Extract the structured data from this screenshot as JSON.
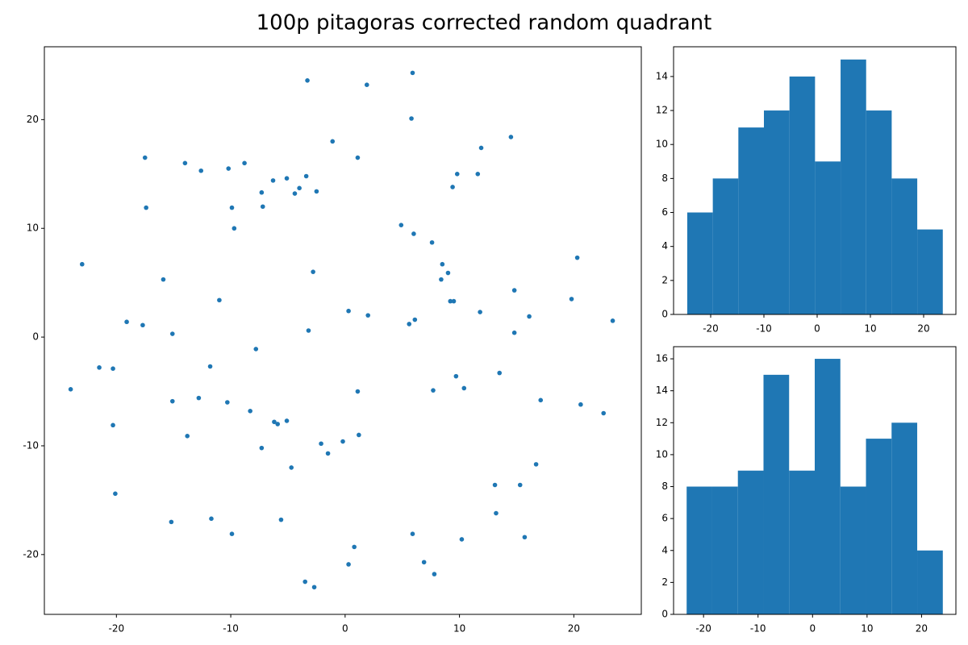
{
  "title": "100p pitagoras corrected random quadrant",
  "chart_data": [
    {
      "type": "scatter",
      "color": "#1f77b4",
      "xlim": [
        -26.3,
        25.9
      ],
      "ylim": [
        -25.5,
        26.7
      ],
      "xticks": [
        -20,
        -10,
        0,
        10,
        20
      ],
      "yticks": [
        -20,
        -10,
        0,
        10,
        20
      ],
      "x": [
        5.9,
        -3.3,
        1.9,
        5.8,
        -1.1,
        -17.5,
        1.1,
        14.5,
        11.9,
        -14.0,
        -12.6,
        -8.8,
        -10.2,
        -5.1,
        -3.4,
        -6.3,
        9.8,
        11.6,
        9.4,
        -7.3,
        -4.0,
        -4.4,
        -2.5,
        -17.4,
        -9.9,
        -7.2,
        -9.7,
        4.9,
        6.0,
        7.6,
        -23.0,
        20.3,
        8.5,
        9.0,
        -2.8,
        8.4,
        -15.9,
        14.8,
        -11.0,
        9.2,
        9.5,
        19.8,
        -19.1,
        -17.7,
        0.3,
        2.0,
        11.8,
        16.1,
        5.6,
        6.1,
        23.4,
        -15.1,
        -3.2,
        14.8,
        -7.8,
        -21.5,
        -20.3,
        -11.8,
        -24.0,
        9.7,
        13.5,
        7.7,
        10.4,
        1.1,
        -15.1,
        -12.8,
        -10.3,
        17.1,
        20.6,
        22.6,
        -8.3,
        -6.2,
        -5.9,
        -5.1,
        -20.3,
        -13.8,
        1.2,
        -0.2,
        -2.1,
        -1.5,
        -7.3,
        -4.7,
        16.7,
        -20.1,
        13.1,
        15.3,
        13.2,
        -11.7,
        -15.2,
        -5.6,
        -9.9,
        5.9,
        10.2,
        15.7,
        0.8,
        0.3,
        6.9,
        7.8,
        -3.5,
        -2.7
      ],
      "values": [
        24.3,
        23.6,
        23.2,
        20.1,
        18.0,
        16.5,
        16.5,
        18.4,
        17.4,
        16.0,
        15.3,
        16.0,
        15.5,
        14.6,
        14.8,
        14.4,
        15.0,
        15.0,
        13.8,
        13.3,
        13.7,
        13.2,
        13.4,
        11.9,
        11.9,
        12.0,
        10.0,
        10.3,
        9.5,
        8.7,
        6.7,
        7.3,
        6.7,
        5.9,
        6.0,
        5.3,
        5.3,
        4.3,
        3.4,
        3.3,
        3.3,
        3.5,
        1.4,
        1.1,
        2.4,
        2.0,
        2.3,
        1.9,
        1.2,
        1.6,
        1.5,
        0.3,
        0.6,
        0.4,
        -1.1,
        -2.8,
        -2.9,
        -2.7,
        -4.8,
        -3.6,
        -3.3,
        -4.9,
        -4.7,
        -5.0,
        -5.9,
        -5.6,
        -6.0,
        -5.8,
        -6.2,
        -7.0,
        -6.8,
        -7.8,
        -8.0,
        -7.7,
        -8.1,
        -9.1,
        -9.0,
        -9.6,
        -9.8,
        -10.7,
        -10.2,
        -12.0,
        -11.7,
        -14.4,
        -13.6,
        -13.6,
        -16.2,
        -16.7,
        -17.0,
        -16.8,
        -18.1,
        -18.1,
        -18.6,
        -18.4,
        -19.3,
        -20.9,
        -20.7,
        -21.8,
        -22.5,
        -23.0
      ]
    },
    {
      "type": "histogram",
      "color": "#1f77b4",
      "xlim": [
        -26.97,
        26.06
      ],
      "ylim": [
        0,
        15.75
      ],
      "xticks": [
        -20,
        -10,
        0,
        10,
        20
      ],
      "yticks": [
        0,
        2,
        4,
        6,
        8,
        10,
        12,
        14
      ],
      "bins": [
        -24.4,
        -19.6,
        -14.8,
        -10.0,
        -5.2,
        -0.4,
        4.4,
        9.2,
        14.0,
        18.8,
        23.6
      ],
      "values": [
        6,
        8,
        11,
        12,
        14,
        9,
        15,
        12,
        8,
        5
      ]
    },
    {
      "type": "histogram",
      "color": "#1f77b4",
      "xlim": [
        -25.5,
        26.3
      ],
      "ylim": [
        0,
        16.76
      ],
      "xticks": [
        -20,
        -10,
        0,
        10,
        20
      ],
      "yticks": [
        0,
        2,
        4,
        6,
        8,
        10,
        12,
        14,
        16
      ],
      "bins": [
        -23.1,
        -18.4,
        -13.7,
        -9.0,
        -4.3,
        0.4,
        5.1,
        9.8,
        14.5,
        19.2,
        23.9
      ],
      "values": [
        8,
        8,
        9,
        15,
        9,
        16,
        8,
        11,
        12,
        4
      ]
    }
  ]
}
